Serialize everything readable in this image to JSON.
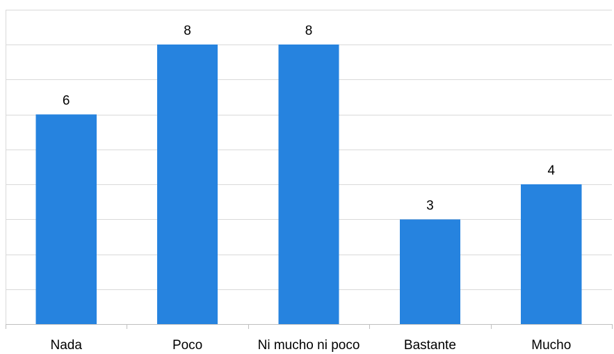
{
  "chart_data": {
    "type": "bar",
    "categories": [
      "Nada",
      "Poco",
      "Ni mucho ni poco",
      "Bastante",
      "Mucho"
    ],
    "values": [
      6,
      8,
      8,
      3,
      4
    ],
    "title": "",
    "xlabel": "",
    "ylabel": "",
    "ylim": [
      0,
      9
    ],
    "y_grid_step": 1,
    "grid": true,
    "y_tick_labels_visible": false,
    "legend": "none",
    "data_labels": true,
    "bar_color": "#2683DF"
  }
}
